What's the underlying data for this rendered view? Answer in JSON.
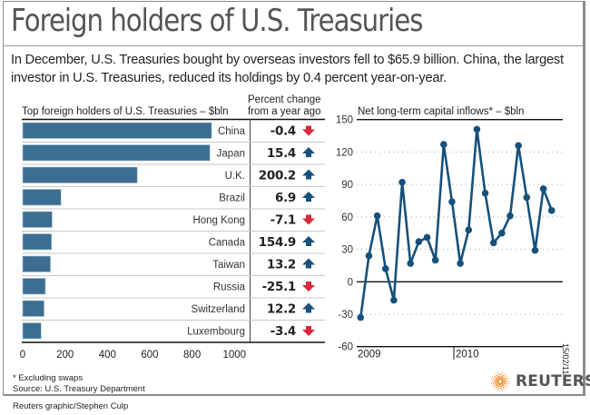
{
  "title": "Foreign holders of U.S. Treasuries",
  "intro": "In December, U.S. Treasuries bought by overseas investors fell to $65.9 billion. China, the largest investor in U.S. Treasuries, reduced its holdings by 0.4 percent year-on-year.",
  "footnote": [
    "* Excluding swaps",
    "Source: U.S. Treasury Department"
  ],
  "credit": "Reuters graphic/Stephen Culp",
  "datestamp": "15/02/11",
  "logo": {
    "text": "REUTERS",
    "icon": "reuters-dot-sphere-icon",
    "color": "#f08a24"
  },
  "colors": {
    "bar": "#3c6e91",
    "line": "#17507a",
    "up_arrow": "#17507a",
    "down_arrow": "#d8283a"
  },
  "chart_data": [
    {
      "type": "bar",
      "orientation": "horizontal",
      "title": "Top foreign holders of U.S. Treasuries – $bln",
      "table_header": [
        "Percent change",
        "from a year ago"
      ],
      "categories": [
        "China",
        "Japan",
        "U.K.",
        "Brazil",
        "Hong Kong",
        "Canada",
        "Taiwan",
        "Russia",
        "Switzerland",
        "Luxembourg"
      ],
      "values": [
        892,
        884,
        541,
        181,
        139,
        136,
        131,
        107,
        101,
        87
      ],
      "pct_change": [
        "-0.4",
        "15.4",
        "200.2",
        "6.9",
        "-7.1",
        "154.9",
        "13.2",
        "-25.1",
        "12.2",
        "-3.4"
      ],
      "direction": [
        "down",
        "up",
        "up",
        "up",
        "down",
        "up",
        "up",
        "down",
        "up",
        "down"
      ],
      "xlim": [
        0,
        1000
      ],
      "xticks": [
        "0",
        "200",
        "400",
        "600",
        "800",
        "1000"
      ],
      "xlabel": "",
      "ylabel": ""
    },
    {
      "type": "line",
      "title": "Net long-term capital inflows* – $bln",
      "x_labels": [
        "2009",
        "2010"
      ],
      "x": [
        "Jan 2009",
        "Feb 2009",
        "Mar 2009",
        "Apr 2009",
        "May 2009",
        "Jun 2009",
        "Jul 2009",
        "Aug 2009",
        "Sep 2009",
        "Oct 2009",
        "Nov 2009",
        "Dec 2009",
        "Jan 2010",
        "Feb 2010",
        "Mar 2010",
        "Apr 2010",
        "May 2010",
        "Jun 2010",
        "Jul 2010",
        "Aug 2010",
        "Sep 2010",
        "Oct 2010",
        "Nov 2010",
        "Dec 2010"
      ],
      "values": [
        -33,
        24,
        61,
        12,
        -17,
        92,
        17,
        37,
        41,
        20,
        127,
        74,
        17,
        48,
        141,
        82,
        36,
        45,
        61,
        126,
        78,
        29,
        86,
        65.9
      ],
      "ylim": [
        -60,
        150
      ],
      "yticks": [
        "-60",
        "-30",
        "0",
        "30",
        "60",
        "90",
        "120",
        "150"
      ],
      "grid": true,
      "xlabel": "",
      "ylabel": ""
    }
  ]
}
